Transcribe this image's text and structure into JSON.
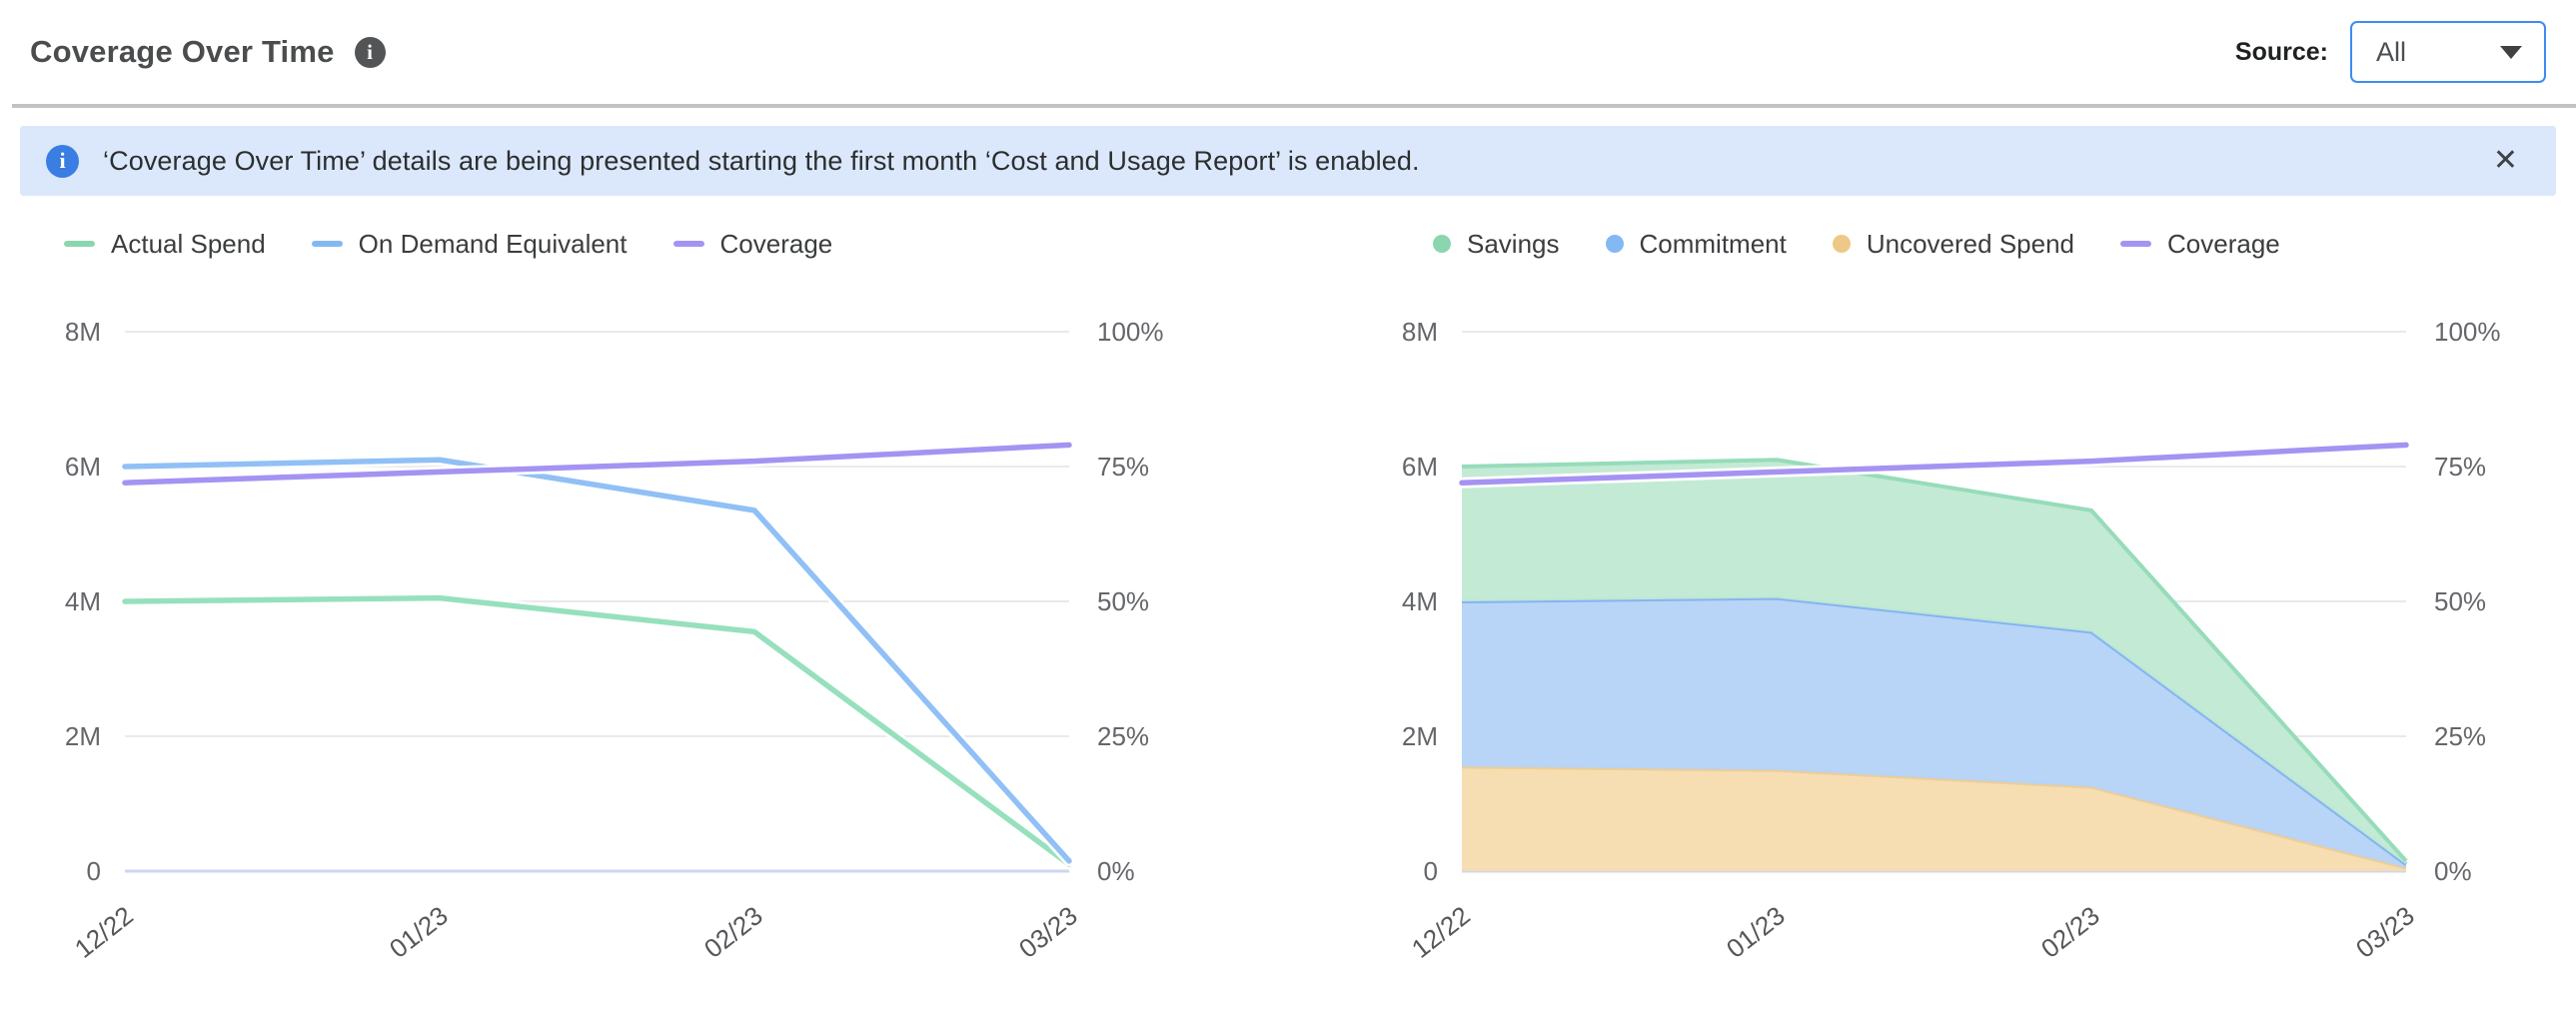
{
  "header": {
    "title": "Coverage Over Time",
    "title_info_icon": "info-circle-icon",
    "source_label": "Source:",
    "source_value": "All"
  },
  "banner": {
    "icon": "info-circle-icon",
    "text": "‘Coverage Over Time’ details are being presented starting the first month ‘Cost and Usage Report’ is enabled.",
    "close_label": "✕"
  },
  "colors": {
    "accent_blue": "#3e8bf1",
    "banner_bg": "#dbe8fb",
    "banner_icon": "#3a7de3",
    "grid": "#e4e4e6",
    "baseline": "#ced5ef",
    "axis_text": "#64666a",
    "x_text": "#55575a"
  },
  "chart_data": [
    {
      "type": "line",
      "title": "Spend vs Coverage (lines)",
      "categories": [
        "12/22",
        "01/23",
        "02/23",
        "03/23"
      ],
      "y_left": {
        "tick_labels": [
          "0",
          "2M",
          "4M",
          "6M",
          "8M"
        ],
        "tick_values": [
          0,
          2,
          4,
          6,
          8
        ],
        "max": 8,
        "unit": "M"
      },
      "y_right": {
        "tick_labels": [
          "0%",
          "25%",
          "50%",
          "75%",
          "100%"
        ],
        "tick_values": [
          0,
          25,
          50,
          75,
          100
        ],
        "max": 100,
        "unit": "%"
      },
      "legend": [
        {
          "label": "Actual Spend",
          "marker": "dash",
          "color": "#8bd6ae"
        },
        {
          "label": "On Demand Equivalent",
          "marker": "dash",
          "color": "#84b8f2"
        },
        {
          "label": "Coverage",
          "marker": "dash",
          "color": "#a493f2"
        }
      ],
      "series": [
        {
          "name": "Actual Spend",
          "kind": "line",
          "axis": "left",
          "color": "#97e0bd",
          "values": [
            4.0,
            4.05,
            3.55,
            0.1
          ]
        },
        {
          "name": "On Demand Equivalent",
          "kind": "line",
          "axis": "left",
          "color": "#90c0f5",
          "values": [
            6.0,
            6.1,
            5.35,
            0.15
          ]
        },
        {
          "name": "Coverage",
          "kind": "line",
          "axis": "right",
          "color": "#a493f2",
          "values": [
            72,
            74,
            76,
            79
          ]
        }
      ]
    },
    {
      "type": "area",
      "title": "Savings / Commitment / Uncovered Spend (stacked) vs Coverage",
      "categories": [
        "12/22",
        "01/23",
        "02/23",
        "03/23"
      ],
      "y_left": {
        "tick_labels": [
          "0",
          "2M",
          "4M",
          "6M",
          "8M"
        ],
        "tick_values": [
          0,
          2,
          4,
          6,
          8
        ],
        "max": 8,
        "unit": "M"
      },
      "y_right": {
        "tick_labels": [
          "0%",
          "25%",
          "50%",
          "75%",
          "100%"
        ],
        "tick_values": [
          0,
          25,
          50,
          75,
          100
        ],
        "max": 100,
        "unit": "%"
      },
      "legend": [
        {
          "label": "Savings",
          "marker": "dot",
          "color": "#8bd6ae"
        },
        {
          "label": "Commitment",
          "marker": "dot",
          "color": "#84b8f2"
        },
        {
          "label": "Uncovered Spend",
          "marker": "dot",
          "color": "#eec886"
        },
        {
          "label": "Coverage",
          "marker": "dash",
          "color": "#a493f2"
        }
      ],
      "series": [
        {
          "name": "Uncovered Spend",
          "kind": "area",
          "axis": "left",
          "fill": "#f5dcae",
          "edge": "#efcd96",
          "values": [
            1.55,
            1.5,
            1.25,
            0.05
          ]
        },
        {
          "name": "Commitment",
          "kind": "area",
          "axis": "left",
          "fill": "#b4d3f8",
          "edge": "#84b5f1",
          "values": [
            2.45,
            2.55,
            2.3,
            0.05
          ]
        },
        {
          "name": "Savings",
          "kind": "area",
          "axis": "left",
          "fill": "#c0e9d2",
          "edge": "#96dcba",
          "values": [
            2.0,
            2.05,
            1.8,
            0.05
          ]
        },
        {
          "name": "Coverage",
          "kind": "line",
          "axis": "right",
          "color": "#a493f2",
          "values": [
            72,
            74,
            76,
            79
          ]
        }
      ]
    }
  ]
}
